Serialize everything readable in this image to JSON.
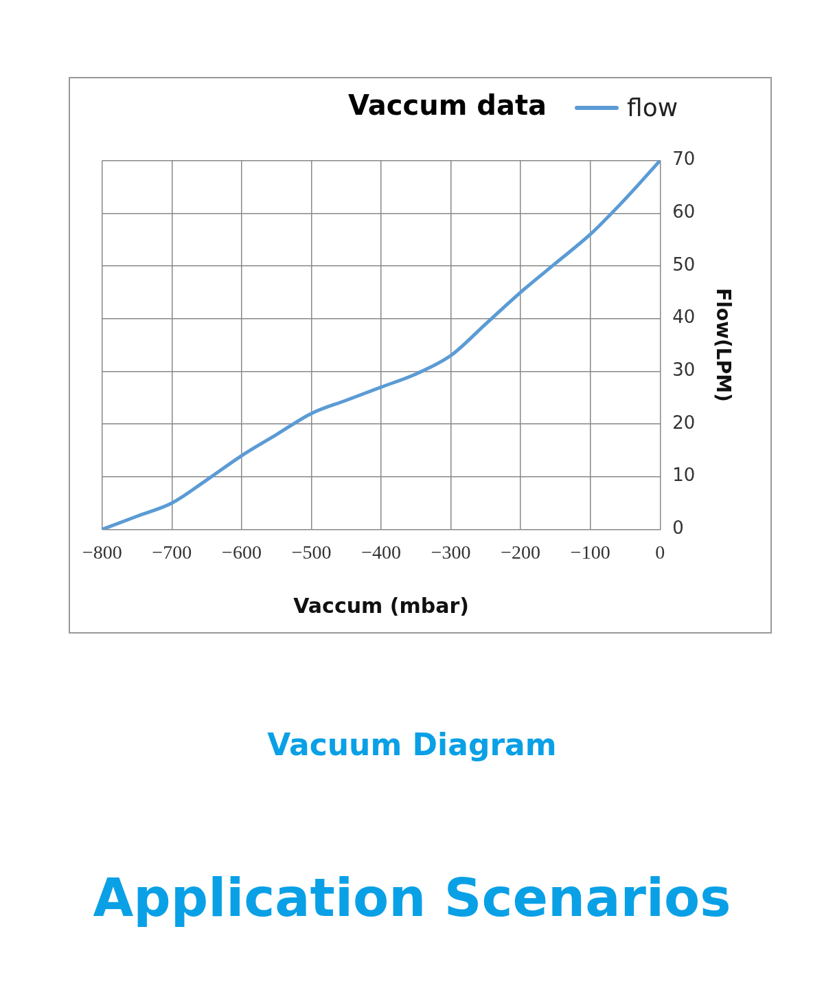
{
  "chart_data": {
    "type": "line",
    "title": "Vaccum data",
    "xlabel": "Vaccum (mbar)",
    "ylabel": "Flow(LPM)",
    "x": [
      -800,
      -750,
      -700,
      -650,
      -600,
      -550,
      -500,
      -450,
      -400,
      -350,
      -300,
      -250,
      -200,
      -150,
      -100,
      -50,
      0
    ],
    "series": [
      {
        "name": "flow",
        "color": "#5b9bd5",
        "values": [
          0,
          2.5,
          5,
          9.4,
          14,
          18,
          22,
          24.5,
          27,
          29.5,
          33,
          39,
          45,
          50.5,
          56,
          62.7,
          70
        ]
      }
    ],
    "xlim": [
      -800,
      0
    ],
    "xticks": [
      {
        "value": -800,
        "label": "−800"
      },
      {
        "value": -700,
        "label": "−700"
      },
      {
        "value": -600,
        "label": "−600"
      },
      {
        "value": -500,
        "label": "−500"
      },
      {
        "value": -400,
        "label": "−400"
      },
      {
        "value": -300,
        "label": "−300"
      },
      {
        "value": -200,
        "label": "−200"
      },
      {
        "value": -100,
        "label": "−100"
      },
      0
    ],
    "ylim": [
      0,
      70
    ],
    "yticks": [
      0,
      10,
      20,
      30,
      40,
      50,
      60,
      70
    ],
    "grid": true,
    "legend": "top right",
    "line_style": "solid",
    "annotations": [
      "Vacuum Diagram",
      "Application Scenarios"
    ]
  }
}
